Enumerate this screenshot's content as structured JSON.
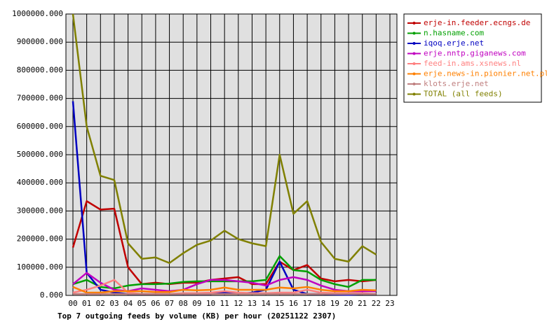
{
  "chart_data": {
    "type": "line",
    "title": "Top 7 outgoing feeds by volume (KB) per hour (20251122 2307)",
    "categories": [
      "00",
      "01",
      "02",
      "03",
      "04",
      "05",
      "06",
      "07",
      "08",
      "09",
      "10",
      "11",
      "12",
      "13",
      "14",
      "15",
      "16",
      "17",
      "18",
      "19",
      "20",
      "21",
      "22",
      "23"
    ],
    "ylim": [
      0,
      1000000
    ],
    "yticks": [
      {
        "value": 0,
        "label": "0.000"
      },
      {
        "value": 100000,
        "label": "100000.000"
      },
      {
        "value": 200000,
        "label": "200000.000"
      },
      {
        "value": 300000,
        "label": "300000.000"
      },
      {
        "value": 400000,
        "label": "400000.000"
      },
      {
        "value": 500000,
        "label": "500000.000"
      },
      {
        "value": 600000,
        "label": "600000.000"
      },
      {
        "value": 700000,
        "label": "700000.000"
      },
      {
        "value": 800000,
        "label": "800000.000"
      },
      {
        "value": 900000,
        "label": "900000.000"
      },
      {
        "value": 1000000,
        "label": "1000000.000"
      }
    ],
    "grid": true,
    "legend": "right",
    "series": [
      {
        "name": "erje-in.feeder.ecngs.de",
        "color": "#c00000",
        "values": [
          170000,
          335000,
          305000,
          308000,
          100000,
          40000,
          45000,
          40000,
          45000,
          45000,
          55000,
          60000,
          65000,
          40000,
          40000,
          120000,
          90000,
          108000,
          60000,
          50000,
          55000,
          50000,
          55000,
          null
        ]
      },
      {
        "name": "n.hasname.com",
        "color": "#00a000",
        "values": [
          40000,
          55000,
          30000,
          25000,
          35000,
          40000,
          40000,
          42000,
          48000,
          50000,
          50000,
          50000,
          50000,
          50000,
          55000,
          140000,
          90000,
          85000,
          55000,
          40000,
          30000,
          55000,
          55000,
          null
        ]
      },
      {
        "name": "iqoq.erje.net",
        "color": "#0000c0",
        "values": [
          690000,
          80000,
          20000,
          10000,
          5000,
          5000,
          5000,
          5000,
          5000,
          5000,
          5000,
          10000,
          5000,
          10000,
          20000,
          120000,
          20000,
          5000,
          5000,
          3000,
          2000,
          5000,
          5000,
          null
        ]
      },
      {
        "name": "erje.nntp.giganews.com",
        "color": "#c000c0",
        "values": [
          40000,
          80000,
          45000,
          20000,
          15000,
          25000,
          20000,
          15000,
          20000,
          40000,
          55000,
          55000,
          50000,
          45000,
          35000,
          55000,
          65000,
          55000,
          35000,
          20000,
          15000,
          15000,
          15000,
          null
        ]
      },
      {
        "name": "feed-in.ams.xsnews.nl",
        "color": "#ff8080",
        "values": [
          10000,
          20000,
          35000,
          55000,
          10000,
          5000,
          5000,
          5000,
          8000,
          8000,
          10000,
          15000,
          10000,
          8000,
          8000,
          10000,
          10000,
          20000,
          10000,
          8000,
          8000,
          8000,
          5000,
          null
        ]
      },
      {
        "name": "erje.news-in.pionier.net.pl",
        "color": "#ff8000",
        "values": [
          30000,
          10000,
          10000,
          15000,
          15000,
          15000,
          12000,
          12000,
          20000,
          18000,
          20000,
          28000,
          20000,
          20000,
          20000,
          28000,
          25000,
          30000,
          20000,
          15000,
          15000,
          20000,
          18000,
          null
        ]
      },
      {
        "name": "klots.erje.net",
        "color": "#c08080",
        "values": [
          5000,
          5000,
          5000,
          5000,
          5000,
          5000,
          5000,
          5000,
          5000,
          5000,
          5000,
          5000,
          5000,
          5000,
          5000,
          5000,
          5000,
          5000,
          5000,
          5000,
          5000,
          5000,
          5000,
          null
        ]
      },
      {
        "name": "TOTAL (all feeds)",
        "color": "#808000",
        "values": [
          1000000,
          600000,
          425000,
          410000,
          185000,
          130000,
          135000,
          115000,
          150000,
          180000,
          195000,
          230000,
          200000,
          185000,
          175000,
          500000,
          290000,
          335000,
          190000,
          130000,
          120000,
          175000,
          145000,
          null
        ]
      }
    ]
  }
}
